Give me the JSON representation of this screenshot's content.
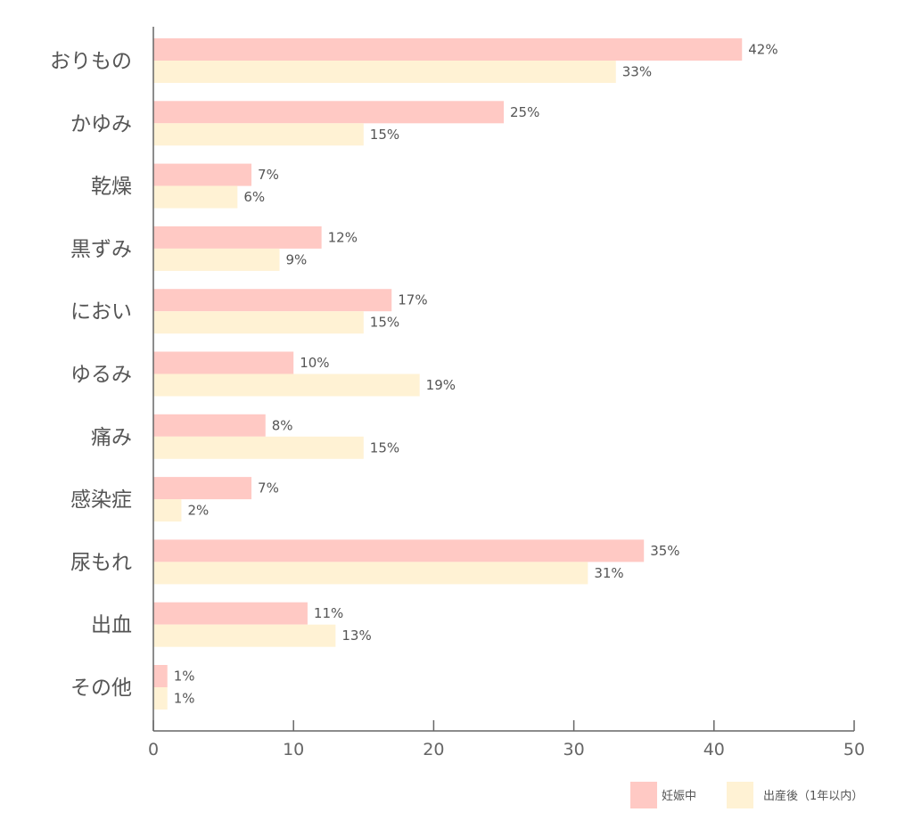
{
  "chart_data": {
    "type": "bar",
    "orientation": "horizontal",
    "categories": [
      "おりもの",
      "かゆみ",
      "乾燥",
      "黒ずみ",
      "におい",
      "ゆるみ",
      "痛み",
      "感染症",
      "尿もれ",
      "出血",
      "その他"
    ],
    "series": [
      {
        "name": "妊娠中",
        "color": "#ffc9c4",
        "values": [
          42,
          25,
          7,
          12,
          17,
          10,
          8,
          7,
          35,
          11,
          1
        ],
        "labels": [
          "42%",
          "25%",
          "7%",
          "12%",
          "17%",
          "10%",
          "8%",
          "7%",
          "35%",
          "11%",
          "1%"
        ]
      },
      {
        "name": "出産後（1年以内）",
        "color": "#fff2d4",
        "values": [
          33,
          15,
          6,
          9,
          15,
          19,
          15,
          2,
          31,
          13,
          1
        ],
        "labels": [
          "33%",
          "15%",
          "6%",
          "9%",
          "15%",
          "19%",
          "15%",
          "2%",
          "31%",
          "13%",
          "1%"
        ]
      }
    ],
    "xlim": [
      0,
      50
    ],
    "xticks": [
      0,
      10,
      20,
      30,
      40,
      50
    ],
    "xtick_labels": [
      "0",
      "10",
      "20",
      "30",
      "40",
      "50"
    ],
    "grid": false,
    "legend_position": "bottom-right",
    "axis_color": "#666666",
    "label_color": "#555555"
  }
}
